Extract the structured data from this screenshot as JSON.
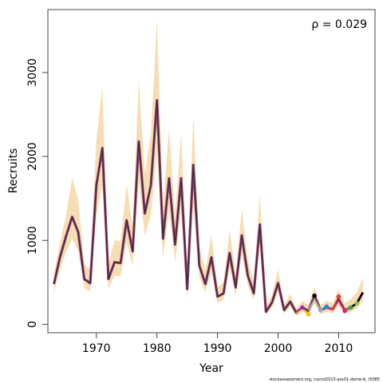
{
  "chart_data": {
    "type": "line",
    "xlabel": "Year",
    "ylabel": "Recruits",
    "annotation": "ρ = 0.029",
    "source_note": "stockassessment.org, nscod2015-ass01-dome-6, r5085",
    "xlim": [
      1962,
      2016
    ],
    "ylim": [
      -100,
      3750
    ],
    "x_ticks": [
      1970,
      1980,
      1990,
      2000,
      2010
    ],
    "y_ticks": [
      0,
      1000,
      2000,
      3000
    ],
    "grid": false,
    "colors": {
      "band": "#f5deb3",
      "main_line": "#000000",
      "retro_line": "#a0456e",
      "frame": "#444444"
    },
    "years": [
      1963,
      1964,
      1965,
      1966,
      1967,
      1968,
      1969,
      1970,
      1971,
      1972,
      1973,
      1974,
      1975,
      1976,
      1977,
      1978,
      1979,
      1980,
      1981,
      1982,
      1983,
      1984,
      1985,
      1986,
      1987,
      1988,
      1989,
      1990,
      1991,
      1992,
      1993,
      1994,
      1995,
      1996,
      1997,
      1998,
      1999,
      2000,
      2001,
      2002,
      2003,
      2004,
      2005,
      2006,
      2007,
      2008,
      2009,
      2010,
      2011,
      2012,
      2013,
      2014
    ],
    "recruits": [
      480,
      800,
      1050,
      1280,
      1100,
      540,
      490,
      1650,
      2100,
      540,
      740,
      730,
      1240,
      870,
      2180,
      1320,
      1660,
      2670,
      1020,
      1740,
      950,
      1740,
      420,
      1900,
      700,
      480,
      800,
      330,
      370,
      850,
      440,
      1060,
      580,
      370,
      1190,
      150,
      260,
      490,
      170,
      270,
      140,
      200,
      160,
      340,
      170,
      200,
      180,
      300,
      170,
      200,
      250,
      380
    ],
    "lower": [
      380,
      650,
      860,
      1020,
      880,
      430,
      390,
      1300,
      1650,
      420,
      580,
      570,
      980,
      700,
      1720,
      1050,
      1300,
      2080,
      800,
      1370,
      740,
      1370,
      320,
      1480,
      560,
      380,
      640,
      250,
      290,
      680,
      340,
      840,
      460,
      290,
      950,
      110,
      200,
      390,
      130,
      210,
      100,
      150,
      120,
      250,
      120,
      150,
      130,
      220,
      130,
      150,
      190,
      280
    ],
    "upper": [
      600,
      980,
      1300,
      1740,
      1490,
      720,
      650,
      2190,
      2820,
      720,
      1000,
      990,
      1660,
      1170,
      2900,
      1790,
      2270,
      3630,
      1380,
      2340,
      1270,
      2280,
      560,
      2490,
      920,
      640,
      1070,
      440,
      500,
      1130,
      590,
      1380,
      770,
      490,
      1560,
      200,
      350,
      660,
      230,
      360,
      190,
      280,
      230,
      440,
      230,
      280,
      250,
      420,
      250,
      300,
      380,
      560
    ],
    "retro_peels": [
      {
        "color": "#ffc107",
        "years": [
          2003,
          2004,
          2005
        ],
        "values": [
          140,
          190,
          120
        ]
      },
      {
        "color": "#a8a8a8",
        "years": [
          2005,
          2006,
          2007
        ],
        "values": [
          160,
          300,
          170
        ]
      },
      {
        "color": "#9c27b0",
        "years": [
          2003,
          2004
        ],
        "values": [
          150,
          200
        ]
      },
      {
        "color": "#1e88e5",
        "years": [
          2007,
          2008
        ],
        "values": [
          170,
          210
        ]
      },
      {
        "color": "#e53935",
        "years": [
          2008,
          2009,
          2010
        ],
        "values": [
          200,
          180,
          330
        ]
      },
      {
        "color": "#e91e63",
        "years": [
          2010,
          2011
        ],
        "values": [
          280,
          160
        ]
      },
      {
        "color": "#43a047",
        "years": [
          2011,
          2012
        ],
        "values": [
          170,
          200
        ]
      },
      {
        "color": "#8bc34a",
        "years": [
          2012,
          2013
        ],
        "values": [
          190,
          250
        ]
      }
    ]
  }
}
